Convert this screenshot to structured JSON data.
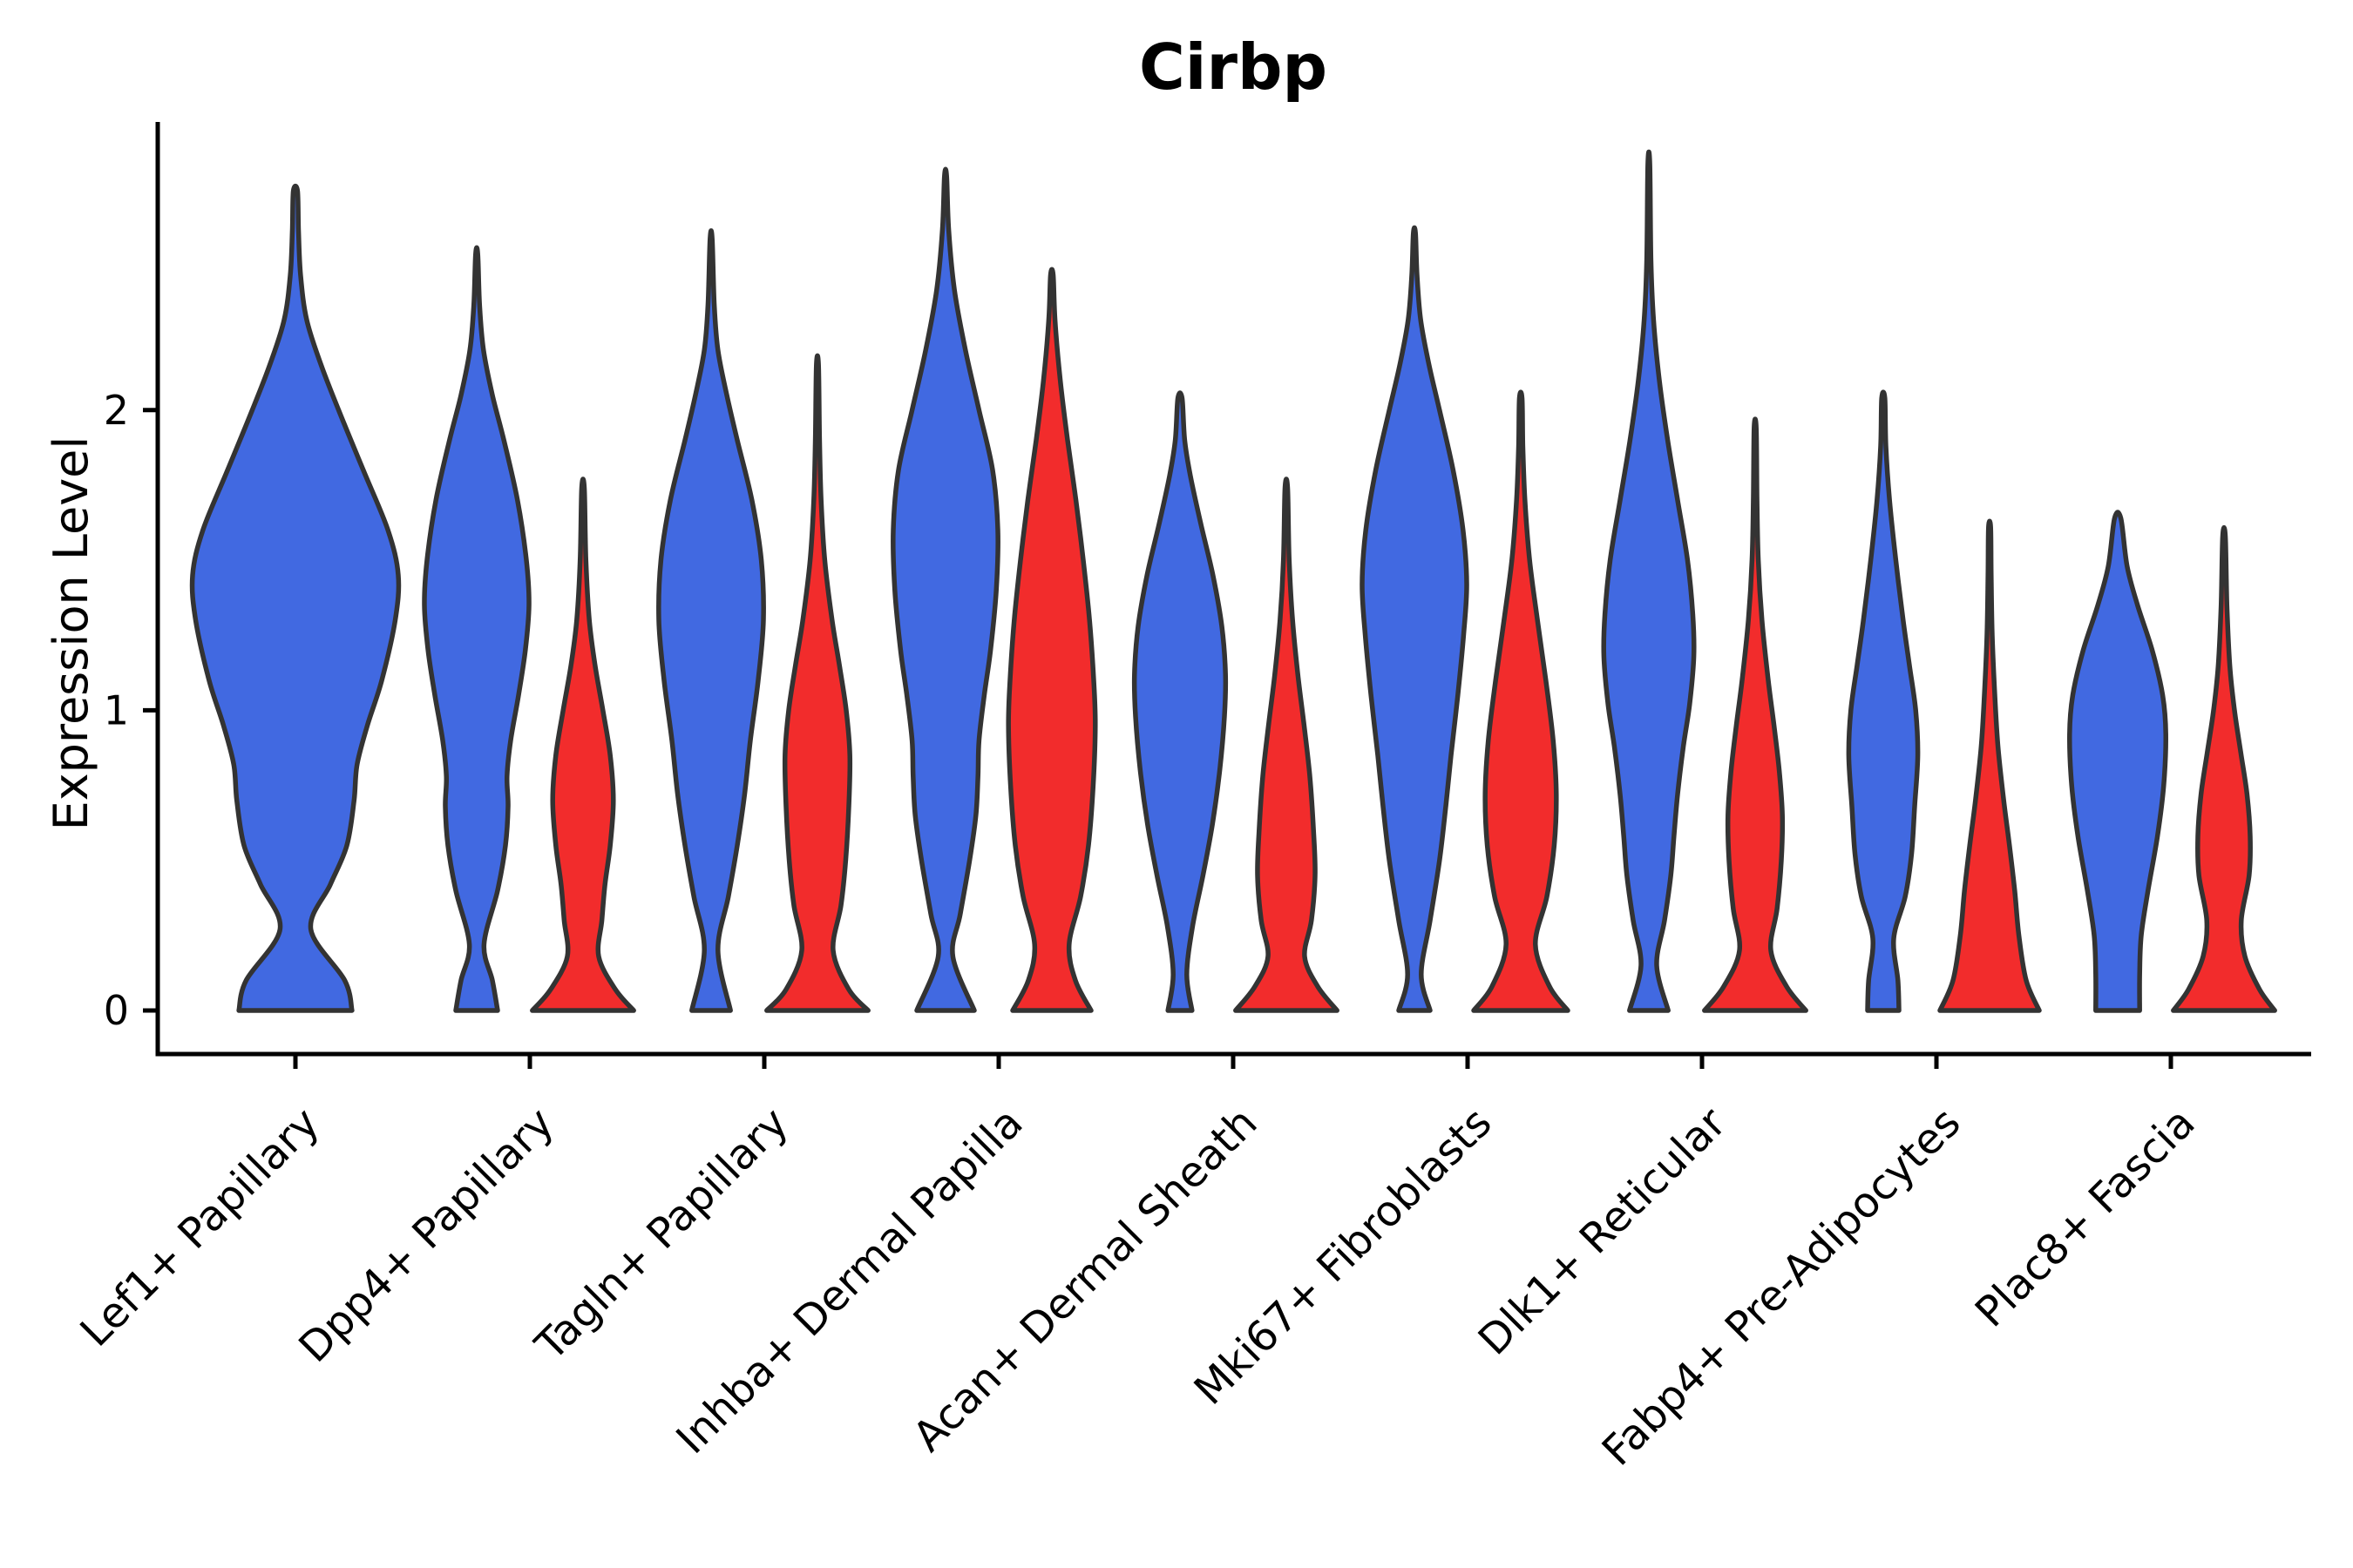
{
  "title": "Cirbp",
  "y_axis": {
    "label": "Expression Level",
    "tick_labels": [
      "0",
      "1",
      "2"
    ],
    "tick_values": [
      0,
      1,
      2
    ]
  },
  "x_axis": {
    "categories": [
      "Lef1+ Papillary",
      "Dpp4+ Papillary",
      "Tagln+ Papillary",
      "Inhba+ Dermal Papilla",
      "Acan+ Dermal Sheath",
      "Mki67+ Fibroblasts",
      "Dlk1+ Reticular",
      "Fabp4+ Pre-Adipocytes",
      "Plac8+ Fascia"
    ]
  },
  "colors": {
    "blue_fill": "#4169E1",
    "red_fill": "#F22C2C",
    "violin_outline": "#333333",
    "axis": "#000000",
    "text": "#000000",
    "background": "#ffffff"
  },
  "chart_data": {
    "type": "violin",
    "title": "Cirbp",
    "xlabel": "",
    "ylabel": "Expression Level",
    "ylim": [
      0,
      2.95
    ],
    "yticks": [
      0,
      1,
      2
    ],
    "grid": false,
    "legend_position": "none",
    "split_groups": [
      "blue",
      "red"
    ],
    "categories": [
      "Lef1+ Papillary",
      "Dpp4+ Papillary",
      "Tagln+ Papillary",
      "Inhba+ Dermal Papilla",
      "Acan+ Dermal Sheath",
      "Mki67+ Fibroblasts",
      "Dlk1+ Reticular",
      "Fabp4+ Pre-Adipocytes",
      "Plac8+ Fascia"
    ],
    "note": "Each violin profile is a list of [expression_value, relative_half_width] density points read from the figure; Lef1+ Papillary shows a single blue violin only.",
    "violins": [
      {
        "category": "Lef1+ Papillary",
        "split": "blue",
        "position": "solo",
        "max_value": 2.73,
        "profile": [
          [
            0,
            0.55
          ],
          [
            0.1,
            0.48
          ],
          [
            0.27,
            0.15
          ],
          [
            0.42,
            0.34
          ],
          [
            0.55,
            0.5
          ],
          [
            0.7,
            0.57
          ],
          [
            0.82,
            0.6
          ],
          [
            0.95,
            0.7
          ],
          [
            1.1,
            0.84
          ],
          [
            1.3,
            0.97
          ],
          [
            1.45,
            1.0
          ],
          [
            1.6,
            0.9
          ],
          [
            1.8,
            0.66
          ],
          [
            2.0,
            0.42
          ],
          [
            2.15,
            0.25
          ],
          [
            2.3,
            0.11
          ],
          [
            2.45,
            0.05
          ],
          [
            2.6,
            0.03
          ],
          [
            2.73,
            0.02
          ]
        ]
      },
      {
        "category": "Dpp4+ Papillary",
        "split": "blue",
        "position": "left",
        "max_value": 2.52,
        "profile": [
          [
            0,
            0.4
          ],
          [
            0.1,
            0.3
          ],
          [
            0.22,
            0.14
          ],
          [
            0.4,
            0.4
          ],
          [
            0.55,
            0.55
          ],
          [
            0.68,
            0.6
          ],
          [
            0.78,
            0.58
          ],
          [
            0.9,
            0.65
          ],
          [
            1.05,
            0.8
          ],
          [
            1.2,
            0.93
          ],
          [
            1.35,
            1.0
          ],
          [
            1.5,
            0.95
          ],
          [
            1.7,
            0.78
          ],
          [
            1.9,
            0.52
          ],
          [
            2.05,
            0.3
          ],
          [
            2.2,
            0.13
          ],
          [
            2.35,
            0.055
          ],
          [
            2.52,
            0.02
          ]
        ]
      },
      {
        "category": "Dpp4+ Papillary",
        "split": "red",
        "position": "right",
        "max_value": 1.74,
        "profile": [
          [
            0,
            0.97
          ],
          [
            0.07,
            0.62
          ],
          [
            0.18,
            0.3
          ],
          [
            0.3,
            0.36
          ],
          [
            0.42,
            0.42
          ],
          [
            0.55,
            0.52
          ],
          [
            0.7,
            0.58
          ],
          [
            0.85,
            0.52
          ],
          [
            1.0,
            0.38
          ],
          [
            1.15,
            0.23
          ],
          [
            1.3,
            0.12
          ],
          [
            1.5,
            0.055
          ],
          [
            1.74,
            0.025
          ]
        ]
      },
      {
        "category": "Tagln+ Papillary",
        "split": "blue",
        "position": "left",
        "max_value": 2.57,
        "profile": [
          [
            0,
            0.37
          ],
          [
            0.2,
            0.13
          ],
          [
            0.38,
            0.33
          ],
          [
            0.55,
            0.5
          ],
          [
            0.72,
            0.64
          ],
          [
            0.9,
            0.75
          ],
          [
            1.1,
            0.9
          ],
          [
            1.3,
            1.0
          ],
          [
            1.5,
            0.96
          ],
          [
            1.7,
            0.78
          ],
          [
            1.9,
            0.5
          ],
          [
            2.05,
            0.3
          ],
          [
            2.2,
            0.13
          ],
          [
            2.35,
            0.06
          ],
          [
            2.57,
            0.02
          ]
        ]
      },
      {
        "category": "Tagln+ Papillary",
        "split": "red",
        "position": "right",
        "max_value": 2.15,
        "profile": [
          [
            0,
            0.97
          ],
          [
            0.07,
            0.6
          ],
          [
            0.2,
            0.3
          ],
          [
            0.35,
            0.45
          ],
          [
            0.5,
            0.54
          ],
          [
            0.68,
            0.6
          ],
          [
            0.85,
            0.62
          ],
          [
            1.0,
            0.55
          ],
          [
            1.15,
            0.42
          ],
          [
            1.3,
            0.28
          ],
          [
            1.5,
            0.14
          ],
          [
            1.7,
            0.07
          ],
          [
            1.9,
            0.04
          ],
          [
            2.15,
            0.02
          ]
        ]
      },
      {
        "category": "Inhba+ Dermal Papilla",
        "split": "blue",
        "position": "left",
        "max_value": 2.78,
        "profile": [
          [
            0,
            0.55
          ],
          [
            0.18,
            0.14
          ],
          [
            0.32,
            0.28
          ],
          [
            0.5,
            0.46
          ],
          [
            0.65,
            0.58
          ],
          [
            0.78,
            0.62
          ],
          [
            0.9,
            0.64
          ],
          [
            1.05,
            0.74
          ],
          [
            1.2,
            0.86
          ],
          [
            1.4,
            0.97
          ],
          [
            1.6,
            1.0
          ],
          [
            1.8,
            0.9
          ],
          [
            2.0,
            0.64
          ],
          [
            2.2,
            0.38
          ],
          [
            2.4,
            0.17
          ],
          [
            2.6,
            0.06
          ],
          [
            2.78,
            0.02
          ]
        ]
      },
      {
        "category": "Inhba+ Dermal Papilla",
        "split": "red",
        "position": "right",
        "max_value": 2.45,
        "profile": [
          [
            0,
            0.75
          ],
          [
            0.1,
            0.45
          ],
          [
            0.22,
            0.33
          ],
          [
            0.38,
            0.55
          ],
          [
            0.55,
            0.7
          ],
          [
            0.75,
            0.79
          ],
          [
            0.95,
            0.83
          ],
          [
            1.1,
            0.8
          ],
          [
            1.3,
            0.72
          ],
          [
            1.5,
            0.6
          ],
          [
            1.7,
            0.46
          ],
          [
            1.9,
            0.3
          ],
          [
            2.1,
            0.16
          ],
          [
            2.3,
            0.06
          ],
          [
            2.45,
            0.025
          ]
        ]
      },
      {
        "category": "Acan+ Dermal Sheath",
        "split": "blue",
        "position": "left",
        "max_value": 2.04,
        "profile": [
          [
            0,
            0.23
          ],
          [
            0.12,
            0.13
          ],
          [
            0.28,
            0.24
          ],
          [
            0.45,
            0.44
          ],
          [
            0.62,
            0.62
          ],
          [
            0.8,
            0.76
          ],
          [
            0.98,
            0.85
          ],
          [
            1.12,
            0.87
          ],
          [
            1.28,
            0.8
          ],
          [
            1.45,
            0.63
          ],
          [
            1.62,
            0.4
          ],
          [
            1.78,
            0.2
          ],
          [
            1.9,
            0.09
          ],
          [
            2.04,
            0.04
          ]
        ]
      },
      {
        "category": "Acan+ Dermal Sheath",
        "split": "red",
        "position": "right",
        "max_value": 1.74,
        "profile": [
          [
            0,
            0.97
          ],
          [
            0.08,
            0.6
          ],
          [
            0.18,
            0.35
          ],
          [
            0.3,
            0.48
          ],
          [
            0.45,
            0.55
          ],
          [
            0.6,
            0.52
          ],
          [
            0.78,
            0.45
          ],
          [
            0.95,
            0.34
          ],
          [
            1.12,
            0.22
          ],
          [
            1.3,
            0.12
          ],
          [
            1.5,
            0.055
          ],
          [
            1.74,
            0.025
          ]
        ]
      },
      {
        "category": "Mki67+ Fibroblasts",
        "split": "blue",
        "position": "left",
        "max_value": 2.59,
        "profile": [
          [
            0,
            0.3
          ],
          [
            0.12,
            0.13
          ],
          [
            0.3,
            0.3
          ],
          [
            0.5,
            0.48
          ],
          [
            0.68,
            0.6
          ],
          [
            0.85,
            0.7
          ],
          [
            1.05,
            0.83
          ],
          [
            1.25,
            0.94
          ],
          [
            1.42,
            1.0
          ],
          [
            1.6,
            0.93
          ],
          [
            1.8,
            0.74
          ],
          [
            2.0,
            0.48
          ],
          [
            2.15,
            0.28
          ],
          [
            2.3,
            0.12
          ],
          [
            2.45,
            0.05
          ],
          [
            2.59,
            0.02
          ]
        ]
      },
      {
        "category": "Mki67+ Fibroblasts",
        "split": "red",
        "position": "right",
        "max_value": 2.04,
        "profile": [
          [
            0,
            0.9
          ],
          [
            0.08,
            0.55
          ],
          [
            0.22,
            0.28
          ],
          [
            0.38,
            0.5
          ],
          [
            0.55,
            0.64
          ],
          [
            0.72,
            0.68
          ],
          [
            0.9,
            0.62
          ],
          [
            1.1,
            0.48
          ],
          [
            1.3,
            0.32
          ],
          [
            1.5,
            0.17
          ],
          [
            1.7,
            0.08
          ],
          [
            1.88,
            0.04
          ],
          [
            2.04,
            0.025
          ]
        ]
      },
      {
        "category": "Dlk1+ Reticular",
        "split": "blue",
        "position": "left",
        "max_value": 2.82,
        "profile": [
          [
            0,
            0.37
          ],
          [
            0.15,
            0.15
          ],
          [
            0.3,
            0.3
          ],
          [
            0.45,
            0.42
          ],
          [
            0.58,
            0.48
          ],
          [
            0.72,
            0.55
          ],
          [
            0.88,
            0.66
          ],
          [
            1.02,
            0.78
          ],
          [
            1.18,
            0.86
          ],
          [
            1.32,
            0.84
          ],
          [
            1.5,
            0.74
          ],
          [
            1.7,
            0.55
          ],
          [
            1.9,
            0.36
          ],
          [
            2.1,
            0.2
          ],
          [
            2.3,
            0.09
          ],
          [
            2.5,
            0.04
          ],
          [
            2.82,
            0.018
          ]
        ]
      },
      {
        "category": "Dlk1+ Reticular",
        "split": "red",
        "position": "right",
        "max_value": 1.94,
        "profile": [
          [
            0,
            0.97
          ],
          [
            0.08,
            0.6
          ],
          [
            0.2,
            0.3
          ],
          [
            0.34,
            0.42
          ],
          [
            0.5,
            0.5
          ],
          [
            0.65,
            0.52
          ],
          [
            0.8,
            0.46
          ],
          [
            0.95,
            0.36
          ],
          [
            1.1,
            0.25
          ],
          [
            1.3,
            0.13
          ],
          [
            1.5,
            0.06
          ],
          [
            1.7,
            0.035
          ],
          [
            1.94,
            0.02
          ]
        ]
      },
      {
        "category": "Fabp4+ Pre-Adipocytes",
        "split": "blue",
        "position": "left",
        "max_value": 2.04,
        "profile": [
          [
            0,
            0.3
          ],
          [
            0.1,
            0.28
          ],
          [
            0.24,
            0.2
          ],
          [
            0.38,
            0.42
          ],
          [
            0.52,
            0.54
          ],
          [
            0.68,
            0.6
          ],
          [
            0.85,
            0.66
          ],
          [
            1.0,
            0.62
          ],
          [
            1.15,
            0.5
          ],
          [
            1.3,
            0.38
          ],
          [
            1.5,
            0.24
          ],
          [
            1.7,
            0.12
          ],
          [
            1.88,
            0.05
          ],
          [
            2.04,
            0.03
          ]
        ]
      },
      {
        "category": "Fabp4+ Pre-Adipocytes",
        "split": "red",
        "position": "right",
        "max_value": 1.61,
        "profile": [
          [
            0,
            0.95
          ],
          [
            0.1,
            0.7
          ],
          [
            0.25,
            0.56
          ],
          [
            0.4,
            0.48
          ],
          [
            0.55,
            0.38
          ],
          [
            0.7,
            0.27
          ],
          [
            0.88,
            0.16
          ],
          [
            1.05,
            0.1
          ],
          [
            1.25,
            0.05
          ],
          [
            1.45,
            0.03
          ],
          [
            1.61,
            0.02
          ]
        ]
      },
      {
        "category": "Plac8+ Fascia",
        "split": "blue",
        "position": "left",
        "max_value": 1.64,
        "profile": [
          [
            0,
            0.42
          ],
          [
            0.12,
            0.42
          ],
          [
            0.25,
            0.45
          ],
          [
            0.4,
            0.58
          ],
          [
            0.58,
            0.76
          ],
          [
            0.75,
            0.88
          ],
          [
            0.92,
            0.92
          ],
          [
            1.05,
            0.86
          ],
          [
            1.2,
            0.66
          ],
          [
            1.35,
            0.38
          ],
          [
            1.48,
            0.18
          ],
          [
            1.64,
            0.06
          ]
        ]
      },
      {
        "category": "Plac8+ Fascia",
        "split": "red",
        "position": "right",
        "max_value": 1.58,
        "profile": [
          [
            0,
            0.97
          ],
          [
            0.07,
            0.68
          ],
          [
            0.18,
            0.4
          ],
          [
            0.3,
            0.33
          ],
          [
            0.45,
            0.48
          ],
          [
            0.58,
            0.5
          ],
          [
            0.72,
            0.44
          ],
          [
            0.86,
            0.32
          ],
          [
            1.0,
            0.2
          ],
          [
            1.15,
            0.11
          ],
          [
            1.35,
            0.055
          ],
          [
            1.58,
            0.025
          ]
        ]
      }
    ]
  }
}
